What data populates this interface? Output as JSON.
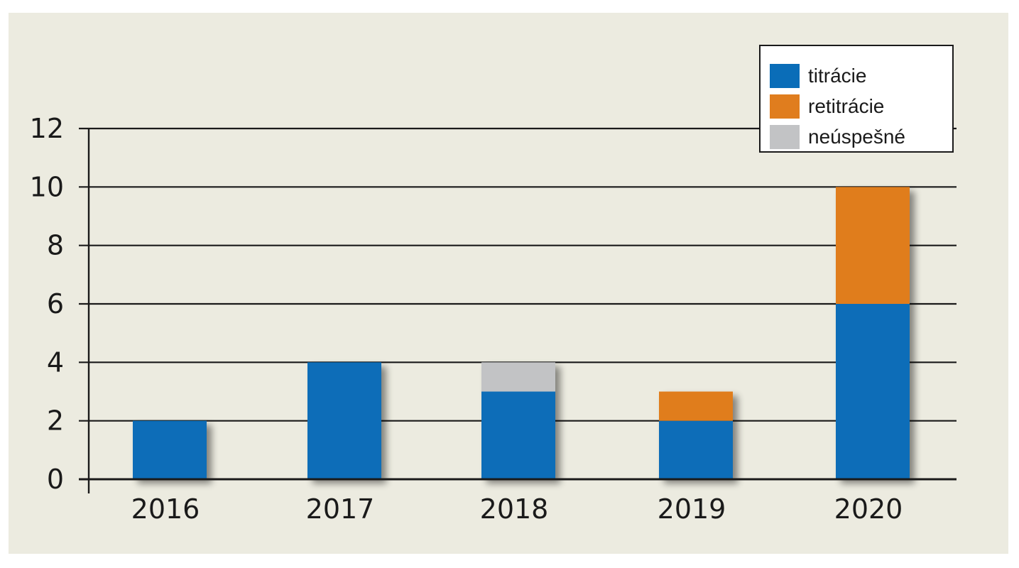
{
  "chart_data": {
    "type": "bar",
    "stacked": true,
    "categories": [
      "2016",
      "2017",
      "2018",
      "2019",
      "2020"
    ],
    "series": [
      {
        "name": "titrácie",
        "color": "#0a6db8",
        "values": [
          2,
          4,
          3,
          2,
          6
        ]
      },
      {
        "name": "retitrácie",
        "color": "#e07d1e",
        "values": [
          0,
          0,
          0,
          1,
          4
        ]
      },
      {
        "name": "neúspešné",
        "color": "#c2c3c5",
        "values": [
          0,
          0,
          1,
          0,
          0
        ]
      }
    ],
    "yticks": [
      0,
      2,
      4,
      6,
      8,
      10,
      12
    ],
    "ylim": [
      0,
      12
    ],
    "grid": true,
    "legend_position": "top-right",
    "title": "",
    "xlabel": "",
    "ylabel": ""
  }
}
